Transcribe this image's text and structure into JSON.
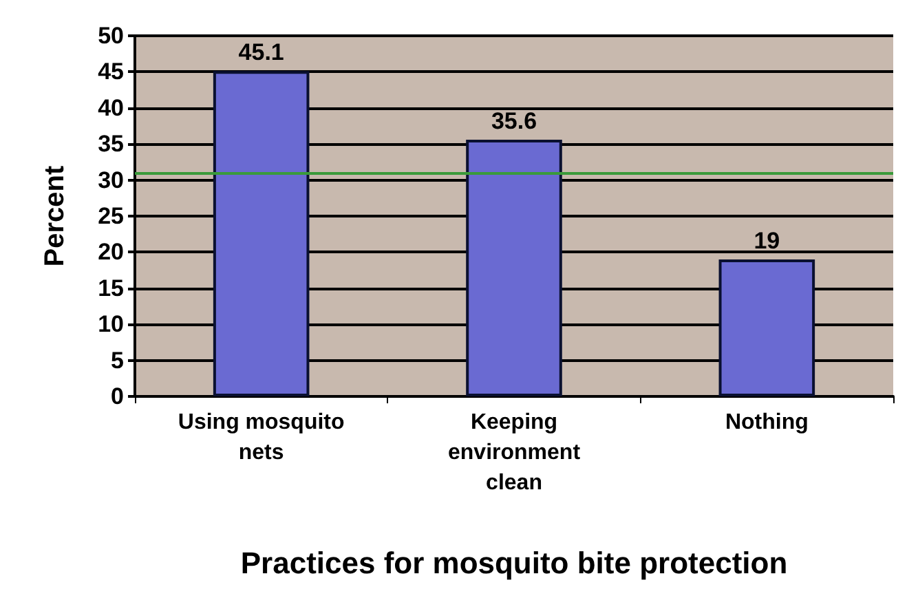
{
  "chart_data": {
    "type": "bar",
    "xlabel": "Practices for mosquito bite protection",
    "ylabel": "Percent",
    "categories": [
      "Using mosquito nets",
      "Keeping environment clean",
      "Nothing"
    ],
    "values": [
      45.1,
      35.6,
      19
    ],
    "color": "#6a6ad2",
    "data_labels": true,
    "ylim": [
      0,
      50
    ],
    "yticks": [
      0,
      5,
      10,
      15,
      20,
      25,
      30,
      35,
      40,
      45,
      50
    ],
    "grid": "y",
    "ref_lines": [
      {
        "axis": "y",
        "value": 31,
        "label": null,
        "color": "#3a9a3a"
      }
    ]
  }
}
